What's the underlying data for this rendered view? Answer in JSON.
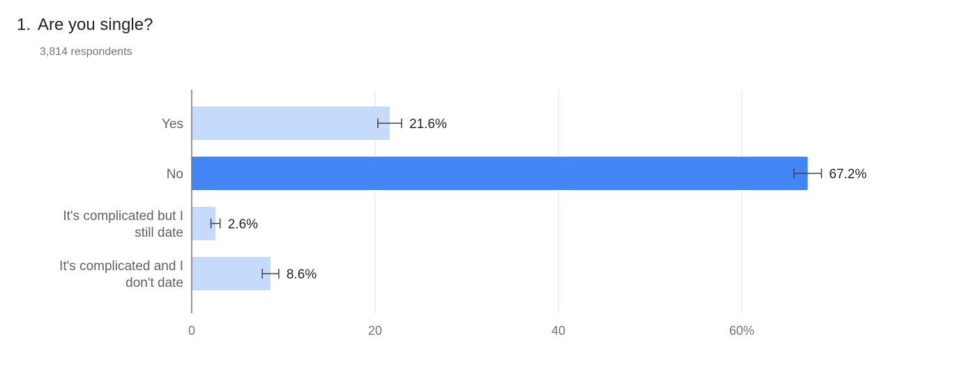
{
  "question": {
    "number": "1.",
    "title": "Are you single?",
    "respondents": "3,814 respondents"
  },
  "colors": {
    "bar_default": "#c6dafc",
    "bar_highlight": "#4285f4",
    "grid": "#e0e0e0",
    "axis": "#757575",
    "error_bar": "#424242"
  },
  "chart_data": {
    "type": "bar",
    "orientation": "horizontal",
    "title": "Are you single?",
    "xlabel": "",
    "ylabel": "",
    "categories": [
      [
        "Yes"
      ],
      [
        "No"
      ],
      [
        "It's complicated but I",
        "still date"
      ],
      [
        "It's complicated and I",
        "don't date"
      ]
    ],
    "values": [
      21.6,
      67.2,
      2.6,
      8.6
    ],
    "value_labels": [
      "21.6%",
      "67.2%",
      "2.6%",
      "8.6%"
    ],
    "error_bars": [
      [
        20.3,
        22.9
      ],
      [
        65.7,
        68.7
      ],
      [
        2.1,
        3.1
      ],
      [
        7.7,
        9.5
      ]
    ],
    "highlight_index": 1,
    "xlim": [
      0,
      70
    ],
    "ticks": [
      0,
      20,
      40,
      60
    ],
    "tick_labels": [
      "0",
      "20",
      "40",
      "60%"
    ],
    "grid": true,
    "legend": "none"
  }
}
